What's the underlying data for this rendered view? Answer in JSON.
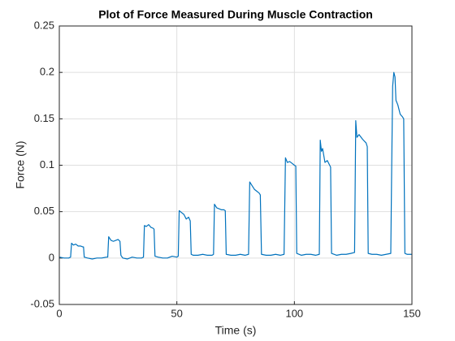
{
  "chart_data": {
    "type": "line",
    "title": "Plot of Force Measured During Muscle Contraction",
    "x_label": "Time (s)",
    "y_label": "Force (N)",
    "x": [
      0,
      2,
      4,
      4.8,
      5.2,
      6,
      7,
      8,
      9,
      10,
      10.3,
      10.6,
      12,
      14,
      16,
      18,
      20,
      20.6,
      21,
      22,
      23,
      24,
      25,
      25.8,
      26.2,
      27,
      29,
      31,
      33,
      35,
      35.8,
      36.2,
      37,
      38,
      39,
      40,
      40.3,
      40.7,
      42,
      44,
      46,
      48,
      50,
      50.6,
      51,
      52,
      53,
      54,
      55,
      55.7,
      56.1,
      57,
      59,
      61,
      63,
      65,
      65.6,
      66,
      67,
      68,
      69,
      70,
      70.6,
      71,
      73,
      75,
      77,
      79,
      80.5,
      81,
      82,
      83,
      84,
      85,
      85.5,
      86,
      88,
      90,
      92,
      94,
      95.6,
      96.2,
      97,
      98,
      99,
      100,
      100.6,
      101,
      103,
      105,
      107,
      109,
      110.6,
      111,
      111.5,
      112,
      113,
      114,
      115,
      115.4,
      115.8,
      118,
      120,
      122,
      124,
      125.6,
      126.1,
      126.6,
      127.5,
      129,
      130.5,
      131,
      131.4,
      133,
      135,
      137,
      139,
      141,
      141.4,
      141.8,
      142.3,
      142.8,
      143.2,
      144,
      145,
      146,
      146.5,
      147,
      148,
      150
    ],
    "values": [
      0.001,
      0,
      0,
      0.001,
      0.016,
      0.014,
      0.015,
      0.013,
      0.013,
      0.012,
      0.012,
      0.001,
      0,
      -0.001,
      0,
      0,
      0.001,
      0.001,
      0.023,
      0.019,
      0.018,
      0.019,
      0.02,
      0.018,
      0.003,
      0,
      -0.001,
      0.001,
      0,
      0,
      0.001,
      0.035,
      0.034,
      0.036,
      0.033,
      0.032,
      0.031,
      0.002,
      0.001,
      0,
      0,
      0.002,
      0.001,
      0.002,
      0.051,
      0.049,
      0.047,
      0.042,
      0.044,
      0.04,
      0.004,
      0.003,
      0.003,
      0.004,
      0.003,
      0.003,
      0.004,
      0.058,
      0.054,
      0.053,
      0.052,
      0.052,
      0.051,
      0.004,
      0.003,
      0.003,
      0.004,
      0.003,
      0.004,
      0.082,
      0.078,
      0.074,
      0.072,
      0.07,
      0.068,
      0.004,
      0.003,
      0.003,
      0.004,
      0.003,
      0.004,
      0.108,
      0.103,
      0.104,
      0.102,
      0.1,
      0.099,
      0.005,
      0.003,
      0.004,
      0.004,
      0.003,
      0.004,
      0.127,
      0.115,
      0.118,
      0.103,
      0.105,
      0.1,
      0.098,
      0.005,
      0.003,
      0.004,
      0.004,
      0.005,
      0.006,
      0.148,
      0.13,
      0.133,
      0.128,
      0.124,
      0.12,
      0.005,
      0.004,
      0.004,
      0.003,
      0.004,
      0.005,
      0.1,
      0.185,
      0.2,
      0.195,
      0.17,
      0.165,
      0.155,
      0.152,
      0.15,
      0.005,
      0.004,
      0.004
    ],
    "color": "#0072bd",
    "xlim": [
      0,
      150
    ],
    "xticks": [
      0,
      50,
      100,
      150
    ],
    "ylim": [
      -0.05,
      0.25
    ],
    "yticks": [
      -0.05,
      0,
      0.05,
      0.1,
      0.15,
      0.2,
      0.25
    ],
    "grid": true
  }
}
